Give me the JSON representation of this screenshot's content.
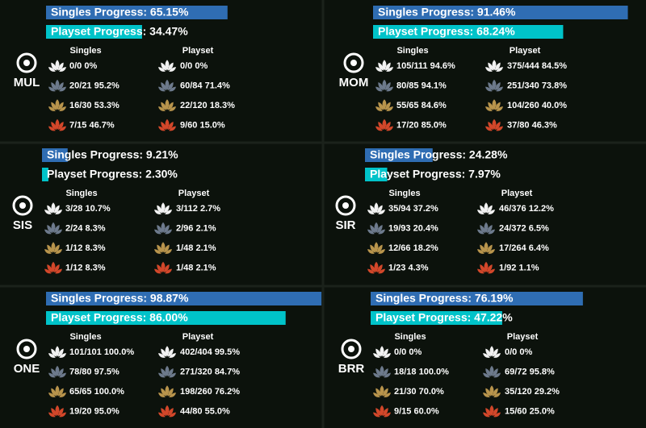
{
  "panels": [
    {
      "code": "MUL",
      "singles_progress": 65.15,
      "singles_progress_text": "Singles Progress: 65.15%",
      "playset_progress": 34.47,
      "playset_progress_text": "Playset Progress: 34.47%",
      "singles_header": "Singles",
      "playset_header": "Playset",
      "rows": [
        {
          "singles": "0/0 0%",
          "playset": "0/0 0%"
        },
        {
          "singles": "20/21 95.2%",
          "playset": "60/84 71.4%"
        },
        {
          "singles": "16/30 53.3%",
          "playset": "22/120 18.3%"
        },
        {
          "singles": "7/15 46.7%",
          "playset": "9/60 15.0%"
        }
      ]
    },
    {
      "code": "MOM",
      "singles_progress": 91.46,
      "singles_progress_text": "Singles Progress: 91.46%",
      "playset_progress": 68.24,
      "playset_progress_text": "Playset Progress: 68.24%",
      "singles_header": "Singles",
      "playset_header": "Playset",
      "rows": [
        {
          "singles": "105/111 94.6%",
          "playset": "375/444 84.5%"
        },
        {
          "singles": "80/85 94.1%",
          "playset": "251/340 73.8%"
        },
        {
          "singles": "55/65 84.6%",
          "playset": "104/260 40.0%"
        },
        {
          "singles": "17/20 85.0%",
          "playset": "37/80 46.3%"
        }
      ]
    },
    {
      "code": "SIS",
      "singles_progress": 9.21,
      "singles_progress_text": "Singles Progress: 9.21%",
      "playset_progress": 2.3,
      "playset_progress_text": "Playset Progress: 2.30%",
      "singles_header": "Singles",
      "playset_header": "Playset",
      "rows": [
        {
          "singles": "3/28 10.7%",
          "playset": "3/112 2.7%"
        },
        {
          "singles": "2/24 8.3%",
          "playset": "2/96 2.1%"
        },
        {
          "singles": "1/12 8.3%",
          "playset": "1/48 2.1%"
        },
        {
          "singles": "1/12 8.3%",
          "playset": "1/48 2.1%"
        }
      ]
    },
    {
      "code": "SIR",
      "singles_progress": 24.28,
      "singles_progress_text": "Singles Progress: 24.28%",
      "playset_progress": 7.97,
      "playset_progress_text": "Playset Progress: 7.97%",
      "singles_header": "Singles",
      "playset_header": "Playset",
      "rows": [
        {
          "singles": "35/94 37.2%",
          "playset": "46/376 12.2%"
        },
        {
          "singles": "19/93 20.4%",
          "playset": "24/372 6.5%"
        },
        {
          "singles": "12/66 18.2%",
          "playset": "17/264 6.4%"
        },
        {
          "singles": "1/23 4.3%",
          "playset": "1/92 1.1%"
        }
      ]
    },
    {
      "code": "ONE",
      "singles_progress": 98.87,
      "singles_progress_text": "Singles Progress: 98.87%",
      "playset_progress": 86.0,
      "playset_progress_text": "Playset Progress: 86.00%",
      "singles_header": "Singles",
      "playset_header": "Playset",
      "rows": [
        {
          "singles": "101/101 100.0%",
          "playset": "402/404 99.5%"
        },
        {
          "singles": "78/80 97.5%",
          "playset": "271/320 84.7%"
        },
        {
          "singles": "65/65 100.0%",
          "playset": "198/260 76.2%"
        },
        {
          "singles": "19/20 95.0%",
          "playset": "44/80 55.0%"
        }
      ]
    },
    {
      "code": "BRR",
      "singles_progress": 76.19,
      "singles_progress_text": "Singles Progress: 76.19%",
      "playset_progress": 47.22,
      "playset_progress_text": "Playset Progress: 47.22%",
      "singles_header": "Singles",
      "playset_header": "Playset",
      "rows": [
        {
          "singles": "0/0 0%",
          "playset": "0/0 0%"
        },
        {
          "singles": "18/18 100.0%",
          "playset": "69/72 95.8%"
        },
        {
          "singles": "21/30 70.0%",
          "playset": "35/120 29.2%"
        },
        {
          "singles": "9/15 60.0%",
          "playset": "15/60 25.0%"
        }
      ]
    }
  ]
}
